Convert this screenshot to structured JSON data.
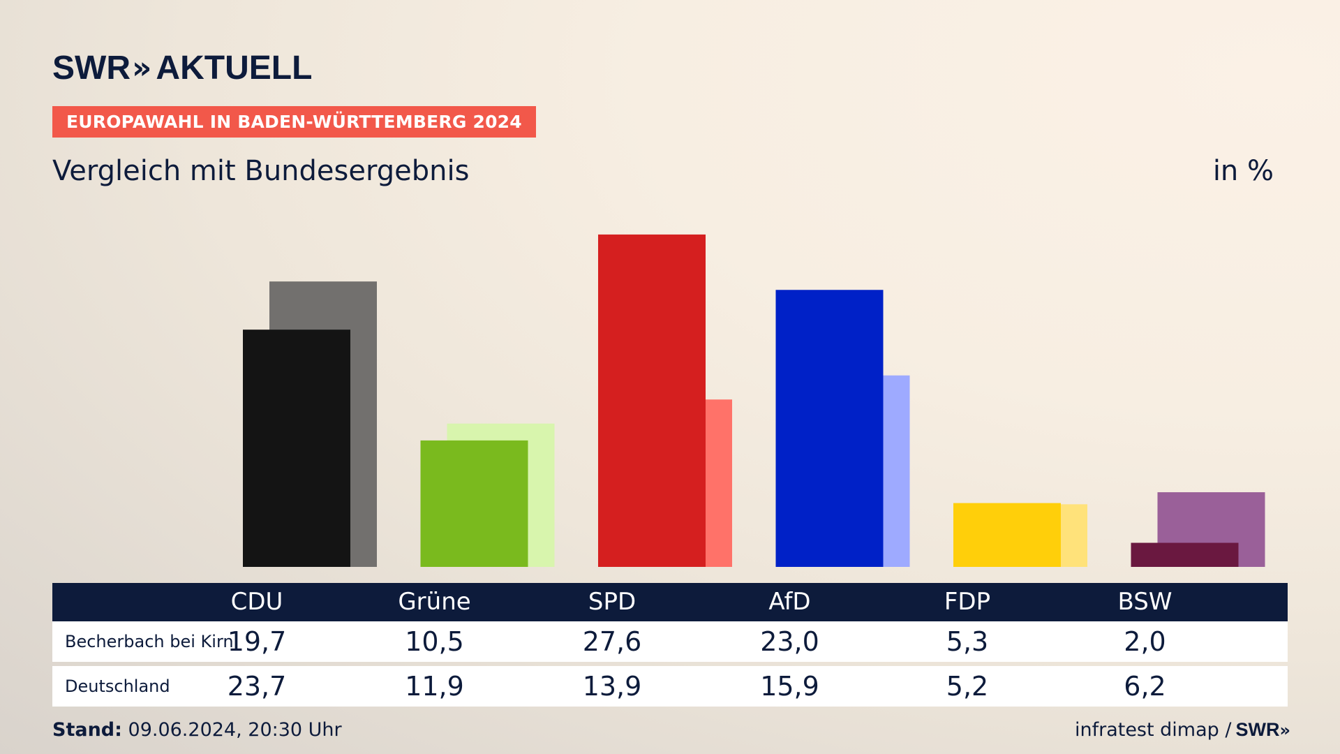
{
  "header": {
    "logo_main": "SWR",
    "logo_arrows": "»",
    "logo_sub": "AKTUELL",
    "badge": "EUROPAWAHL IN BADEN-WÜRTTEMBERG 2024",
    "subtitle": "Vergleich mit Bundesergebnis",
    "unit": "in %"
  },
  "colors": {
    "badge": "#f2584a",
    "navy": "#0d1b3b"
  },
  "chart_data": {
    "type": "bar",
    "title": "Vergleich mit Bundesergebnis",
    "ylabel": "in %",
    "ylim": [
      0,
      32
    ],
    "categories": [
      "CDU",
      "Grüne",
      "SPD",
      "AfD",
      "FDP",
      "BSW"
    ],
    "series": [
      {
        "name": "Becherbach bei Kirn",
        "values": [
          19.7,
          10.5,
          27.6,
          23.0,
          5.3,
          2.0
        ],
        "colors": [
          "#141414",
          "#7aba1e",
          "#d51f1f",
          "#0021c7",
          "#ffcf0a",
          "#6a1840"
        ]
      },
      {
        "name": "Deutschland",
        "values": [
          23.7,
          11.9,
          13.9,
          15.9,
          5.2,
          6.2
        ],
        "colors": [
          "#72706e",
          "#d8f5ad",
          "#ff7269",
          "#9eaaff",
          "#ffe27a",
          "#9a6099"
        ]
      }
    ]
  },
  "table": {
    "headers": [
      "CDU",
      "Grüne",
      "SPD",
      "AfD",
      "FDP",
      "BSW"
    ],
    "rows": [
      {
        "label": "Becherbach bei Kirn",
        "values": [
          "19,7",
          "10,5",
          "27,6",
          "23,0",
          "5,3",
          "2,0"
        ]
      },
      {
        "label": "Deutschland",
        "values": [
          "23,7",
          "11,9",
          "13,9",
          "15,9",
          "5,2",
          "6,2"
        ]
      }
    ]
  },
  "footer": {
    "stand_label": "Stand:",
    "stand_value": "09.06.2024, 20:30 Uhr",
    "source": "infratest dimap /",
    "source_logo": "SWR",
    "source_arrows": "»"
  }
}
